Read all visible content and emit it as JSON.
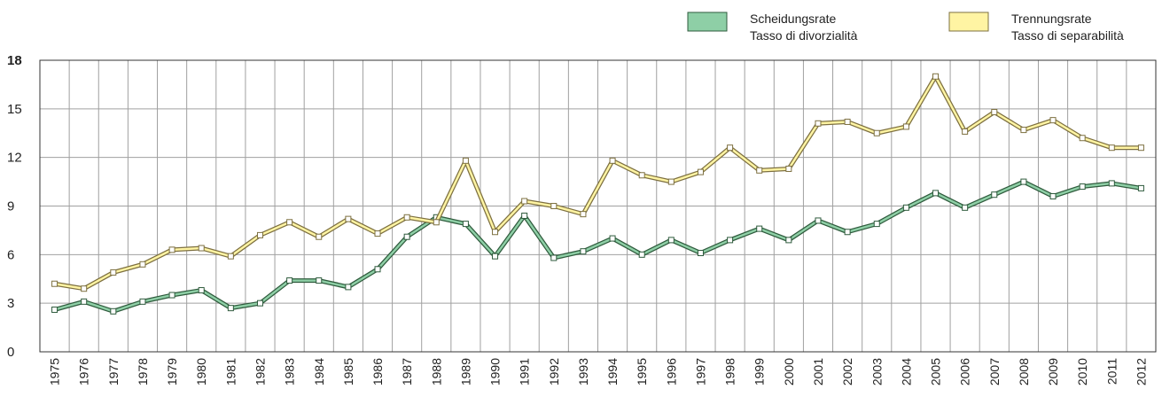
{
  "chart_data": {
    "type": "line",
    "categories": [
      "1975",
      "1976",
      "1977",
      "1978",
      "1979",
      "1980",
      "1981",
      "1982",
      "1983",
      "1984",
      "1985",
      "1986",
      "1987",
      "1988",
      "1989",
      "1990",
      "1991",
      "1992",
      "1993",
      "1994",
      "1995",
      "1996",
      "1997",
      "1998",
      "1999",
      "2000",
      "2001",
      "2002",
      "2003",
      "2004",
      "2005",
      "2006",
      "2007",
      "2008",
      "2009",
      "2010",
      "2011",
      "2012"
    ],
    "series": [
      {
        "name": [
          "Scheidungsrate",
          "Tasso di divorzialità"
        ],
        "color": "#8ecfa6",
        "outline": "#2f5b3d",
        "values": [
          2.6,
          3.1,
          2.5,
          3.1,
          3.5,
          3.8,
          2.7,
          3.0,
          4.4,
          4.4,
          4.0,
          5.1,
          7.1,
          8.3,
          7.9,
          5.9,
          8.4,
          5.8,
          6.2,
          7.0,
          6.0,
          6.9,
          6.1,
          6.9,
          7.6,
          6.9,
          8.1,
          7.4,
          7.9,
          8.9,
          9.8,
          8.9,
          9.7,
          10.5,
          9.6,
          10.2,
          10.4,
          10.1
        ]
      },
      {
        "name": [
          "Trennungsrate",
          "Tasso di separabilità"
        ],
        "color": "#fff4a3",
        "outline": "#7d7040",
        "values": [
          4.2,
          3.9,
          4.9,
          5.4,
          6.3,
          6.4,
          5.9,
          7.2,
          8.0,
          7.1,
          8.2,
          7.3,
          8.3,
          8.0,
          11.8,
          7.4,
          9.3,
          9.0,
          8.5,
          11.8,
          10.9,
          10.5,
          11.1,
          12.6,
          11.2,
          11.3,
          14.1,
          14.2,
          13.5,
          13.9,
          17.0,
          13.6,
          14.8,
          13.7,
          14.3,
          13.2,
          12.6,
          12.6
        ]
      }
    ],
    "ylim": [
      0,
      18
    ],
    "yticks": [
      0,
      3,
      6,
      9,
      12,
      15,
      18
    ],
    "grid": true
  }
}
